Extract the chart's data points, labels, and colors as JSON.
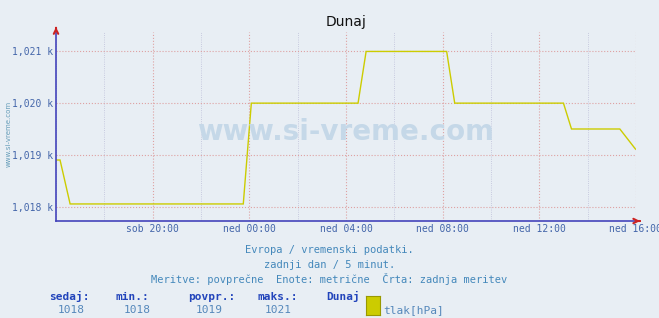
{
  "title": "Dunaj",
  "bg_color": "#e8eef4",
  "plot_bg_color": "#e8eef4",
  "line_color": "#cccc00",
  "title_color": "#111111",
  "ytick_color": "#4466aa",
  "xtick_color": "#4466aa",
  "left_label_color": "#4488aa",
  "grid_h_color": "#dd9999",
  "grid_v_color": "#aaaacc",
  "spine_color": "#4444bb",
  "arrow_color": "#cc2222",
  "ylim": [
    1017.72,
    1021.38
  ],
  "yticks": [
    1018,
    1019,
    1020,
    1021
  ],
  "ytick_labels": [
    "1,018 k",
    "1,019 k",
    "1,020 k",
    "1,021 k"
  ],
  "xtick_positions": [
    48,
    96,
    144,
    192,
    240,
    288
  ],
  "xtick_labels": [
    "sob 20:00",
    "ned 00:00",
    "ned 04:00",
    "ned 08:00",
    "ned 12:00",
    "ned 16:00"
  ],
  "footer_line1": "Evropa / vremenski podatki.",
  "footer_line2": "zadnji dan / 5 minut.",
  "footer_line3": "Meritve: povprečne  Enote: metrične  Črta: zadnja meritev",
  "footer_color": "#4488bb",
  "label_sedaj": "sedaj:",
  "label_min": "min.:",
  "label_povpr": "povpr.:",
  "label_maks": "maks.:",
  "label_dunaj": "Dunaj",
  "val_sedaj": "1018",
  "val_min": "1018",
  "val_povpr": "1019",
  "val_maks": "1021",
  "legend_text": "tlak[hPa]",
  "label_bold_color": "#2244bb",
  "val_color": "#5588bb",
  "watermark": "www.si-vreme.com",
  "watermark_color": "#c5d8e8",
  "left_label": "www.si-vreme.com",
  "n_points": 289,
  "x_end": 288
}
